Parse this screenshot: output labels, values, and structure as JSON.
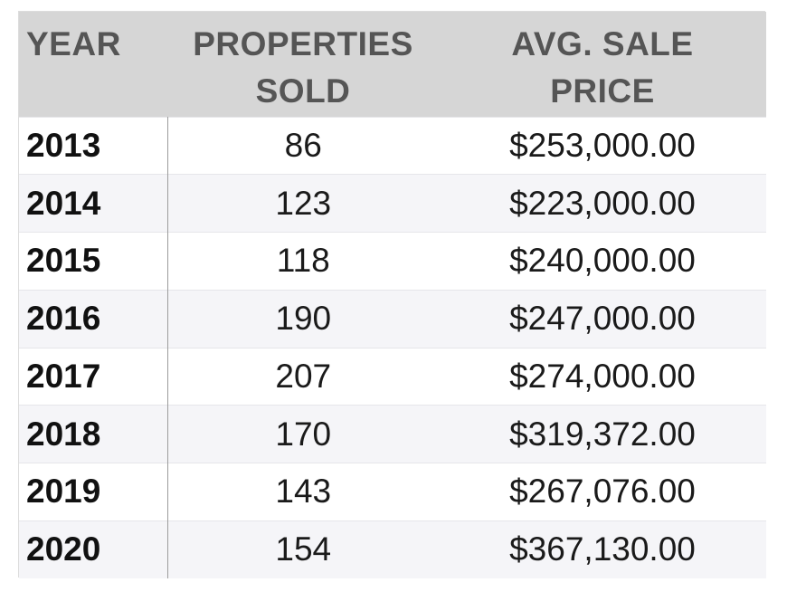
{
  "chart_data": {
    "type": "table",
    "columns": [
      "YEAR",
      "PROPERTIES SOLD",
      "AVG. SALE PRICE"
    ],
    "header_lines": [
      [
        "YEAR"
      ],
      [
        "PROPERTIES",
        "SOLD"
      ],
      [
        "AVG. SALE",
        "PRICE"
      ]
    ],
    "rows": [
      {
        "year": "2013",
        "sold": "86",
        "price": "$253,000.00"
      },
      {
        "year": "2014",
        "sold": "123",
        "price": "$223,000.00"
      },
      {
        "year": "2015",
        "sold": "118",
        "price": "$240,000.00"
      },
      {
        "year": "2016",
        "sold": "190",
        "price": "$247,000.00"
      },
      {
        "year": "2017",
        "sold": "207",
        "price": "$274,000.00"
      },
      {
        "year": "2018",
        "sold": "170",
        "price": "$319,372.00"
      },
      {
        "year": "2019",
        "sold": "143",
        "price": "$267,076.00"
      },
      {
        "year": "2020",
        "sold": "154",
        "price": "$367,130.00"
      }
    ]
  },
  "colors": {
    "header_background": "#d6d6d6",
    "header_text": "#555555",
    "row_alt_background": "#f5f5f8",
    "divider": "#9c9c9c"
  }
}
